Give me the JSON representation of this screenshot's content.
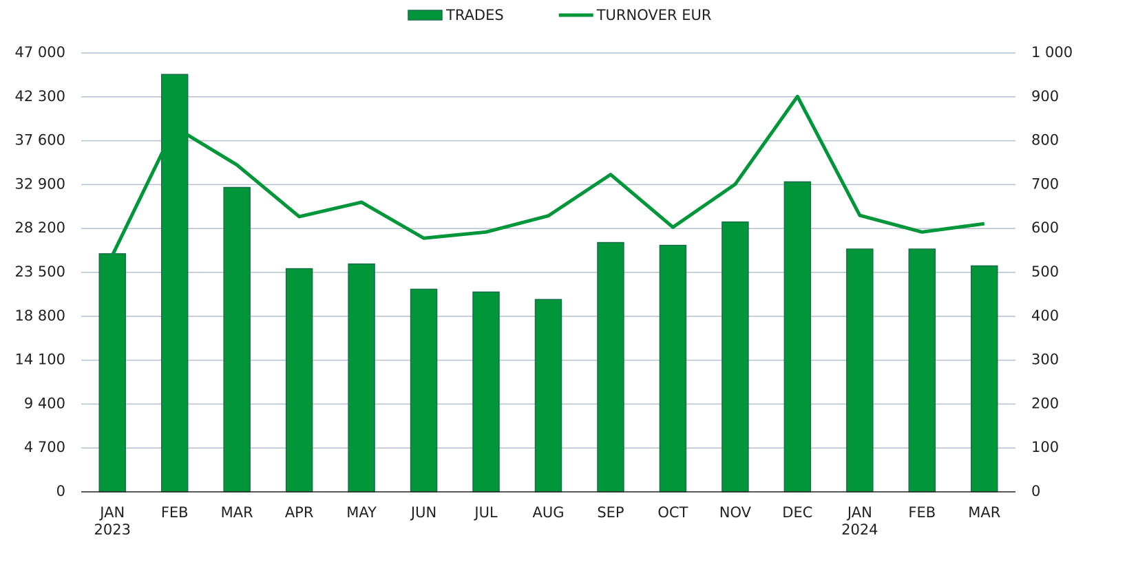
{
  "chart_data": {
    "type": "bar_line",
    "categories": [
      "JAN 2023",
      "FEB",
      "MAR",
      "APR",
      "MAY",
      "JUN",
      "JUL",
      "AUG",
      "SEP",
      "OCT",
      "NOV",
      "DEC",
      "JAN 2024",
      "FEB",
      "MAR"
    ],
    "series": [
      {
        "name": "TRADES",
        "type": "bar",
        "color": "#009639",
        "values": [
          25500,
          44700,
          32600,
          23900,
          24400,
          21700,
          21400,
          20600,
          26700,
          26400,
          28900,
          33200,
          26000,
          26000,
          24200
        ]
      },
      {
        "name": "TURNOVER EUR",
        "type": "line",
        "axis": "y2",
        "color": "#009639",
        "values": [
          539,
          831,
          745,
          627,
          660,
          578,
          592,
          629,
          723,
          603,
          701,
          901,
          630,
          592,
          611
        ]
      }
    ],
    "ylim": [
      0,
      47000
    ],
    "yticks": [
      0,
      {
        "value": 4700,
        "label": "4 700"
      },
      {
        "value": 9400,
        "label": "9 400"
      },
      {
        "value": 14100,
        "label": "14 100"
      },
      {
        "value": 18800,
        "label": "18 800"
      },
      {
        "value": 23500,
        "label": "23 500"
      },
      {
        "value": 28200,
        "label": "28 200"
      },
      {
        "value": 32900,
        "label": "32 900"
      },
      {
        "value": 37600,
        "label": "37 600"
      },
      {
        "value": 42300,
        "label": "42 300"
      },
      {
        "value": 47000,
        "label": "47 000"
      }
    ],
    "y2lim": [
      0,
      1000
    ],
    "y2ticks": [
      0,
      100,
      200,
      300,
      400,
      500,
      600,
      700,
      800,
      900,
      {
        "value": 1000,
        "label": "1 000"
      }
    ],
    "grid": true,
    "legend": "top"
  }
}
